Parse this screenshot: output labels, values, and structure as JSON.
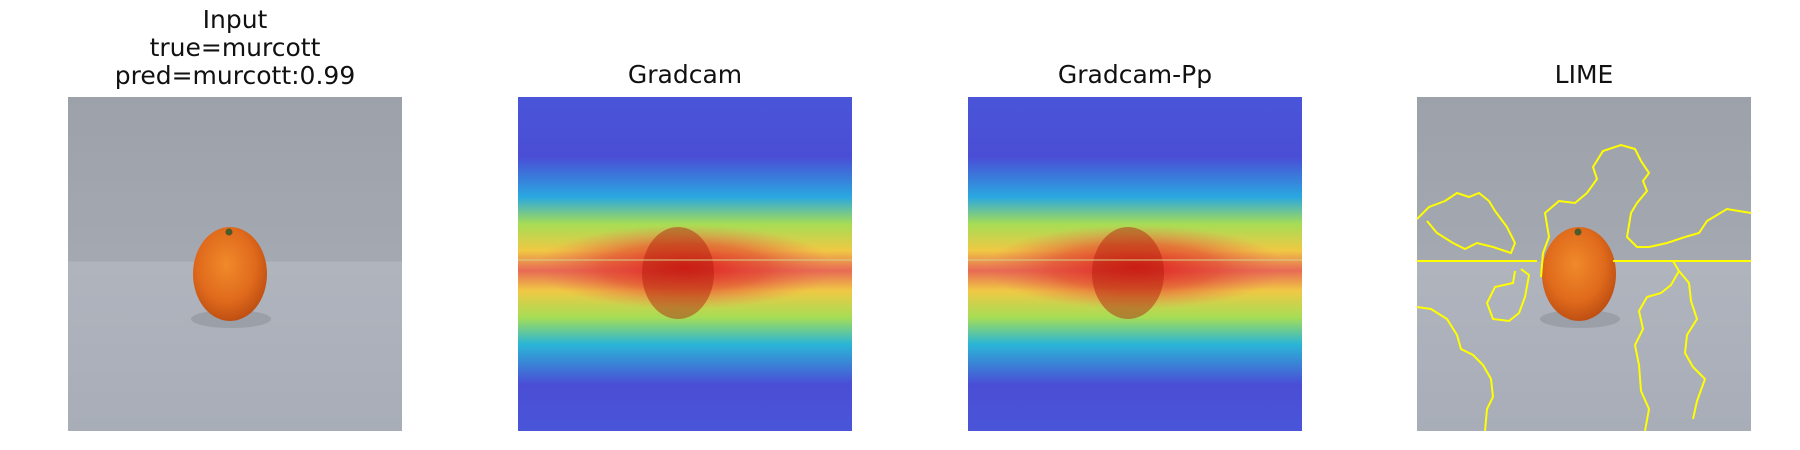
{
  "panels": [
    {
      "title_lines": [
        "Input",
        "true=murcott",
        "pred=murcott:0.99"
      ]
    },
    {
      "title": "Gradcam"
    },
    {
      "title": "Gradcam-Pp"
    },
    {
      "title": "LIME"
    }
  ],
  "colors": {
    "background": "#ffffff",
    "wall": "#9a9ea6",
    "table": "#aeb3bd",
    "fruit": "#e06a1c",
    "heat_low": "#3e46d8",
    "heat_high": "#e01818",
    "lime_boundary": "#ffff00"
  }
}
